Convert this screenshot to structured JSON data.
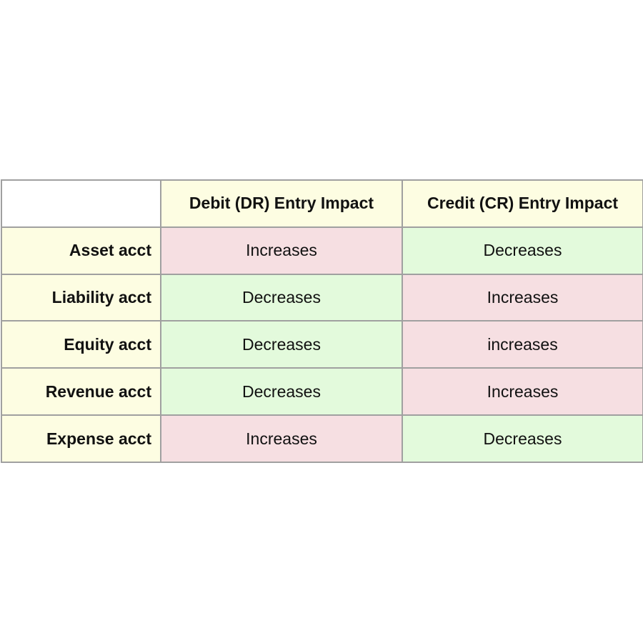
{
  "table": {
    "header": [
      "Debit (DR) Entry Impact",
      "Credit (CR) Entry Impact"
    ],
    "rows": [
      [
        "Asset acct",
        "Increases",
        "Decreases"
      ],
      [
        "Liability acct",
        "Decreases",
        "Increases"
      ],
      [
        "Equity acct",
        "Decreases",
        "increases"
      ],
      [
        "Revenue acct",
        "Decreases",
        "Increases"
      ],
      [
        "Expense acct",
        "Increases",
        "Decreases"
      ]
    ]
  }
}
